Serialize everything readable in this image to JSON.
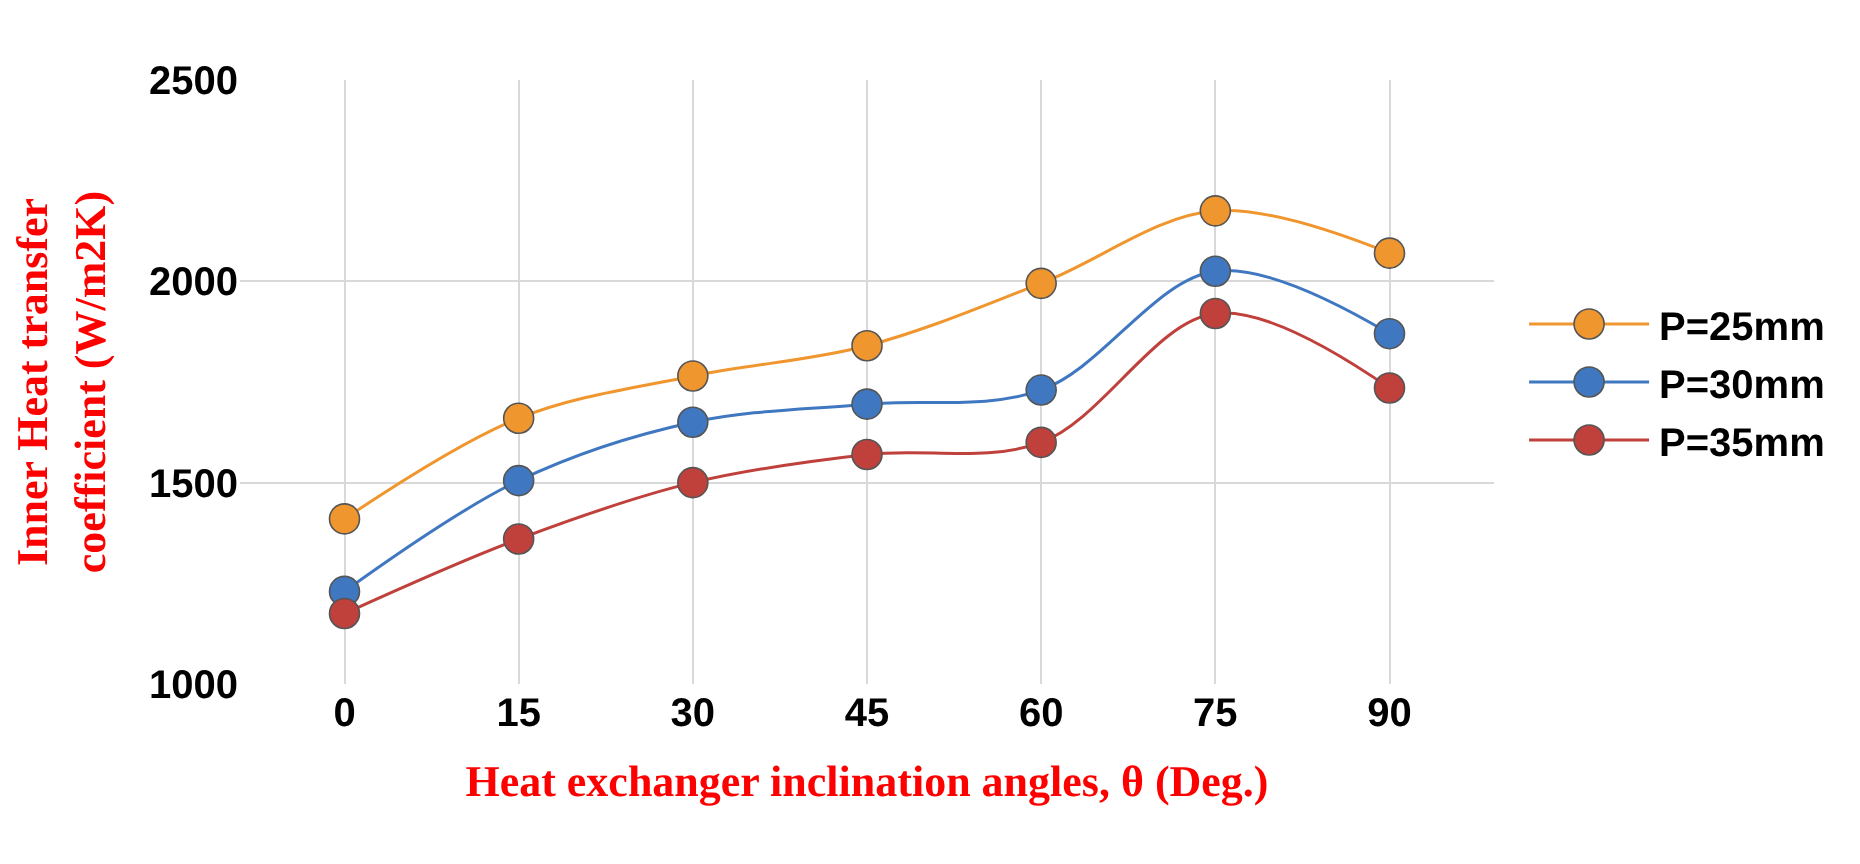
{
  "chart_data": {
    "type": "line",
    "xlabel": "Heat exchanger inclination angles, θ (Deg.)",
    "ylabel": "Inner Heat transfer coefficient (W/m2K)",
    "categories": [
      "0",
      "15",
      "30",
      "45",
      "60",
      "75",
      "90"
    ],
    "series": [
      {
        "name": "P=25mm",
        "color": "#f0962e",
        "values": [
          1410,
          1660,
          1765,
          1840,
          1995,
          2175,
          2070
        ]
      },
      {
        "name": "P=30mm",
        "color": "#3f78c0",
        "values": [
          1230,
          1505,
          1650,
          1695,
          1730,
          2025,
          1870
        ]
      },
      {
        "name": "P=35mm",
        "color": "#c0403c",
        "values": [
          1175,
          1360,
          1500,
          1570,
          1600,
          1920,
          1735
        ]
      }
    ],
    "ylim": [
      1000,
      2500
    ],
    "yticks": [
      1000,
      1500,
      2000,
      2500
    ],
    "grid": true,
    "legend": "right",
    "marker": "circle",
    "line_style": "solid"
  }
}
